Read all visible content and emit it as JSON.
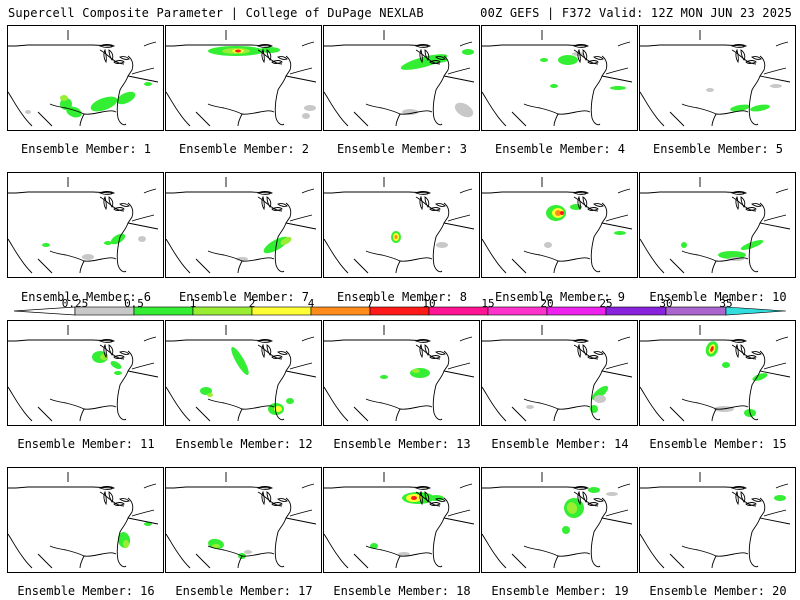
{
  "header": {
    "title_left": "Supercell Composite Parameter | College of DuPage NEXLAB",
    "title_right": "00Z GEFS | F372 Valid: 12Z MON JUN 23 2025"
  },
  "panels": [
    {
      "label": "Ensemble Member: 1"
    },
    {
      "label": "Ensemble Member: 2"
    },
    {
      "label": "Ensemble Member: 3"
    },
    {
      "label": "Ensemble Member: 4"
    },
    {
      "label": "Ensemble Member: 5"
    },
    {
      "label": "Ensemble Member: 6"
    },
    {
      "label": "Ensemble Member: 7"
    },
    {
      "label": "Ensemble Member: 8"
    },
    {
      "label": "Ensemble Member: 9"
    },
    {
      "label": "Ensemble Member: 10"
    },
    {
      "label": "Ensemble Member: 11"
    },
    {
      "label": "Ensemble Member: 12"
    },
    {
      "label": "Ensemble Member: 13"
    },
    {
      "label": "Ensemble Member: 14"
    },
    {
      "label": "Ensemble Member: 15"
    },
    {
      "label": "Ensemble Member: 16"
    },
    {
      "label": "Ensemble Member: 17"
    },
    {
      "label": "Ensemble Member: 18"
    },
    {
      "label": "Ensemble Member: 19"
    },
    {
      "label": "Ensemble Member: 20"
    }
  ],
  "colorbar": {
    "ticks": [
      "0.25",
      "0.5",
      "1",
      "2",
      "4",
      "7",
      "10",
      "15",
      "20",
      "25",
      "30",
      "35"
    ],
    "colors": [
      "#c8c8c8",
      "#33ee33",
      "#99ee33",
      "#ffff33",
      "#ff8c1a",
      "#ff1a1a",
      "#ff1493",
      "#ff33cc",
      "#ee22ee",
      "#8822dd",
      "#aa66cc",
      "#33dddd"
    ]
  }
}
